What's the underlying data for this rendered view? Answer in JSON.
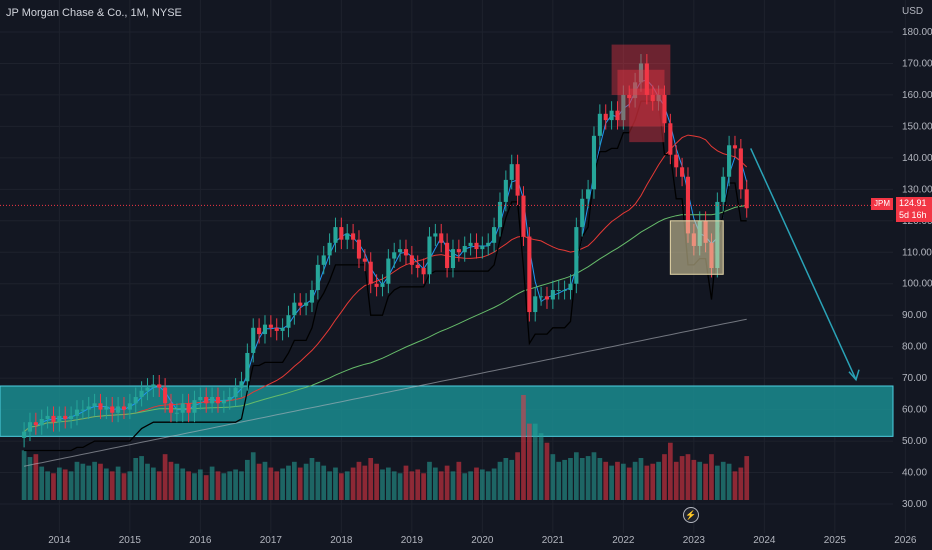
{
  "header": {
    "title": "JP Morgan Chase & Co., 1M, NYSE",
    "currency": "USD"
  },
  "price_tag": {
    "symbol": "JPM",
    "value": "124.91",
    "countdown": "5d 16h"
  },
  "icons": {
    "bolt": "lightning-bolt-icon"
  },
  "colors": {
    "background": "#131722",
    "up": "#26a69a",
    "down": "#f23645",
    "ma_fast": "#2196f3",
    "ma_red": "#e53935",
    "ma_green": "#66bb6a",
    "ma_white": "#b2b5be",
    "support_zone": "#1a8c8f",
    "arrow": "#2aa3b7",
    "black_line": "#000000"
  },
  "chart_data": {
    "type": "candlestick",
    "ticker": "JPM",
    "interval": "1M",
    "exchange": "NYSE",
    "x_axis_labels": [
      "2014",
      "2015",
      "2016",
      "2017",
      "2018",
      "2019",
      "2020",
      "2021",
      "2022",
      "2023",
      "2024",
      "2025",
      "2026"
    ],
    "y_axis_labels": [
      "30.00",
      "40.00",
      "50.00",
      "60.00",
      "70.00",
      "80.00",
      "90.00",
      "100.00",
      "110.00",
      "120.00",
      "130.00",
      "140.00",
      "150.00",
      "160.00",
      "170.00",
      "180.00"
    ],
    "ylim": [
      25,
      185
    ],
    "xlim": [
      2013.4,
      2026.0
    ],
    "start_year": 2013.5,
    "monthly_close": [
      53,
      56,
      55,
      57,
      58,
      56,
      58,
      57,
      58,
      60,
      60,
      61,
      62,
      60,
      61,
      59,
      61,
      60,
      62,
      64,
      66,
      67,
      68,
      67,
      62,
      59,
      59,
      62,
      59,
      63,
      64,
      62,
      64,
      62,
      63,
      64,
      67,
      69,
      78,
      86,
      84,
      87,
      86,
      85,
      86,
      90,
      94,
      93,
      94,
      98,
      106,
      109,
      113,
      118,
      114,
      116,
      114,
      108,
      107,
      100,
      99,
      100,
      108,
      110,
      111,
      109,
      106,
      105,
      103,
      115,
      116,
      113,
      105,
      111,
      110,
      112,
      113,
      111,
      112,
      113,
      118,
      126,
      133,
      138,
      128,
      115,
      91,
      96,
      96,
      95,
      98,
      98,
      98,
      100,
      118,
      127,
      130,
      147,
      154,
      152,
      155,
      152,
      160,
      159,
      164,
      170,
      160,
      158,
      160,
      151,
      141,
      137,
      134,
      116,
      112,
      120,
      113,
      105,
      126,
      134,
      144,
      143,
      130,
      124
    ],
    "moving_averages": [
      {
        "color": "blue",
        "values_from_index": 0
      },
      {
        "color": "red"
      },
      {
        "color": "green"
      }
    ],
    "last_price": 124.91,
    "support_zone": [
      51.5,
      67.5
    ],
    "projection_target": 69.5,
    "volume_axis_note": "Volume bars overlaid at bottom (relative)",
    "volume": [
      52,
      45,
      48,
      35,
      30,
      28,
      34,
      32,
      30,
      40,
      38,
      36,
      40,
      38,
      33,
      30,
      35,
      28,
      30,
      44,
      46,
      38,
      34,
      30,
      48,
      40,
      38,
      33,
      30,
      28,
      32,
      26,
      35,
      30,
      28,
      30,
      32,
      30,
      42,
      50,
      38,
      40,
      34,
      30,
      33,
      36,
      40,
      34,
      38,
      44,
      40,
      36,
      30,
      34,
      28,
      30,
      34,
      40,
      36,
      44,
      38,
      32,
      34,
      30,
      28,
      36,
      30,
      32,
      28,
      40,
      34,
      30,
      36,
      30,
      40,
      28,
      30,
      34,
      32,
      30,
      33,
      40,
      44,
      42,
      50,
      110,
      80,
      80,
      70,
      60,
      48,
      40,
      42,
      44,
      50,
      44,
      46,
      50,
      44,
      40,
      36,
      40,
      38,
      34,
      40,
      44,
      36,
      38,
      40,
      48,
      60,
      40,
      46,
      48,
      42,
      40,
      38,
      48,
      36,
      40,
      38,
      30,
      34,
      46
    ]
  }
}
